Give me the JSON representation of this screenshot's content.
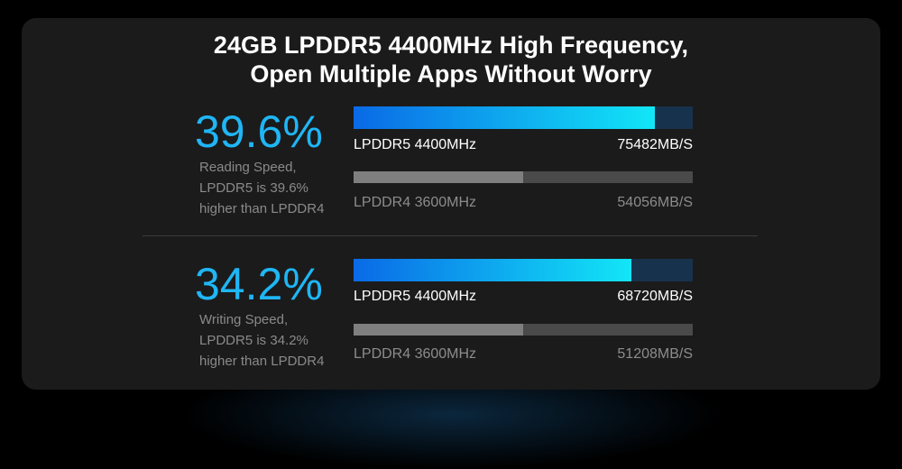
{
  "title": {
    "line1": "24GB LPDDR5 4400MHz High Frequency,",
    "line2": "Open Multiple Apps Without Worry"
  },
  "sections": [
    {
      "percent": "39.6%",
      "desc": [
        "Reading Speed,",
        "LPDDR5 is 39.6%",
        "higher than LPDDR4"
      ],
      "bars": [
        {
          "label": "LPDDR5 4400MHz",
          "value": "75482MB/S",
          "fill": 0.888
        },
        {
          "label": "LPDDR4 3600MHz",
          "value": "54056MB/S",
          "fill": 0.5
        }
      ]
    },
    {
      "percent": "34.2%",
      "desc": [
        "Writing Speed,",
        "LPDDR5 is 34.2%",
        "higher than LPDDR4"
      ],
      "bars": [
        {
          "label": "LPDDR5 4400MHz",
          "value": "68720MB/S",
          "fill": 0.819
        },
        {
          "label": "LPDDR4 3600MHz",
          "value": "51208MB/S",
          "fill": 0.5
        }
      ]
    }
  ],
  "colors": {
    "accent": "#1fb6f5"
  }
}
